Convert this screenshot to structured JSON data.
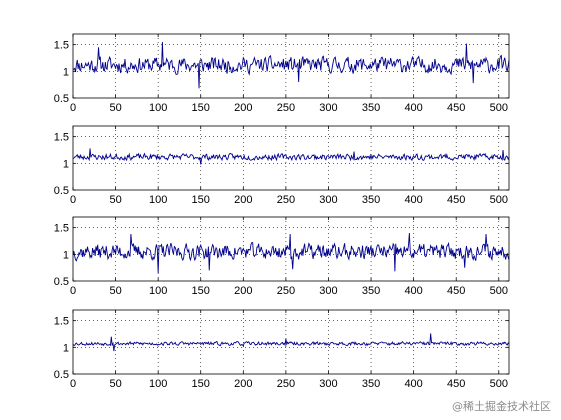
{
  "chart_data": [
    {
      "type": "line",
      "xlim": [
        0,
        512
      ],
      "ylim": [
        0.5,
        1.7
      ],
      "xticks": [
        0,
        50,
        100,
        150,
        200,
        250,
        300,
        350,
        400,
        450,
        500
      ],
      "yticks": [
        0.5,
        1,
        1.5
      ],
      "yticklabels": [
        "0.5",
        "1",
        "1.5"
      ],
      "grid": true,
      "series": [
        {
          "color": "#00008b",
          "seed": 11,
          "mean": 1.12,
          "amplitude": 0.13,
          "spikes": [
            [
              105,
              1.55
            ],
            [
              148,
              0.68
            ],
            [
              462,
              1.52
            ],
            [
              470,
              0.78
            ],
            [
              30,
              1.45
            ],
            [
              265,
              0.8
            ]
          ]
        }
      ]
    },
    {
      "type": "line",
      "xlim": [
        0,
        512
      ],
      "ylim": [
        0.5,
        1.7
      ],
      "xticks": [
        0,
        50,
        100,
        150,
        200,
        250,
        300,
        350,
        400,
        450,
        500
      ],
      "yticks": [
        0.5,
        1,
        1.5
      ],
      "yticklabels": [
        "0.5",
        "1",
        "1.5"
      ],
      "grid": true,
      "series": [
        {
          "color": "#00008b",
          "seed": 23,
          "mean": 1.12,
          "amplitude": 0.05,
          "spikes": [
            [
              20,
              1.28
            ],
            [
              150,
              0.98
            ],
            [
              505,
              1.25
            ],
            [
              330,
              1.22
            ]
          ]
        }
      ]
    },
    {
      "type": "line",
      "xlim": [
        0,
        512
      ],
      "ylim": [
        0.5,
        1.7
      ],
      "xticks": [
        0,
        50,
        100,
        150,
        200,
        250,
        300,
        350,
        400,
        450,
        500
      ],
      "yticks": [
        0.5,
        1,
        1.5
      ],
      "yticklabels": [
        "0.5",
        "1",
        "1.5"
      ],
      "grid": true,
      "series": [
        {
          "color": "#00008b",
          "seed": 37,
          "mean": 1.05,
          "amplitude": 0.13,
          "spikes": [
            [
              68,
              1.38
            ],
            [
              100,
              0.65
            ],
            [
              160,
              0.7
            ],
            [
              255,
              1.38
            ],
            [
              258,
              0.72
            ],
            [
              378,
              0.68
            ],
            [
              395,
              1.4
            ],
            [
              485,
              1.38
            ],
            [
              460,
              0.75
            ]
          ]
        }
      ]
    },
    {
      "type": "line",
      "xlim": [
        0,
        512
      ],
      "ylim": [
        0.5,
        1.7
      ],
      "xticks": [
        0,
        50,
        100,
        150,
        200,
        250,
        300,
        350,
        400,
        450,
        500
      ],
      "yticks": [
        0.5,
        1,
        1.5
      ],
      "yticklabels": [
        "0.5",
        "1",
        "1.5"
      ],
      "grid": true,
      "series": [
        {
          "color": "#00008b",
          "seed": 53,
          "mean": 1.07,
          "amplitude": 0.03,
          "spikes": [
            [
              45,
              1.2
            ],
            [
              48,
              0.93
            ],
            [
              420,
              1.26
            ],
            [
              250,
              1.16
            ],
            [
              200,
              1.02
            ]
          ]
        }
      ]
    }
  ],
  "watermark": "@稀土掘金技术社区"
}
